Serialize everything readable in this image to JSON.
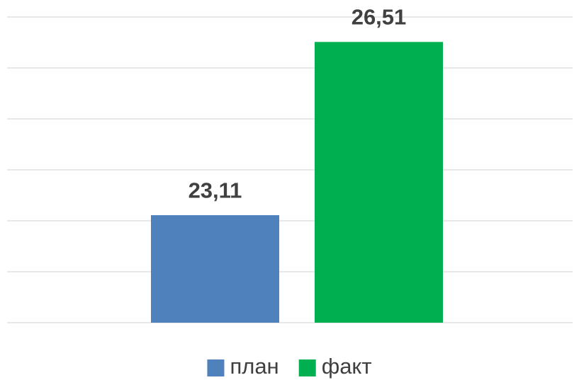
{
  "chart_data": {
    "type": "bar",
    "categories": [
      null
    ],
    "series": [
      {
        "name": "план",
        "color": "#4f81bd",
        "values": [
          23.11
        ],
        "value_labels": [
          "23,11"
        ]
      },
      {
        "name": "факт",
        "color": "#00b050",
        "values": [
          26.51
        ],
        "value_labels": [
          "26,51"
        ]
      }
    ],
    "ylim": [
      21,
      27
    ],
    "yticks": [
      21,
      22,
      23,
      24,
      25,
      26,
      27
    ],
    "grid": true,
    "legend": "bottom"
  }
}
